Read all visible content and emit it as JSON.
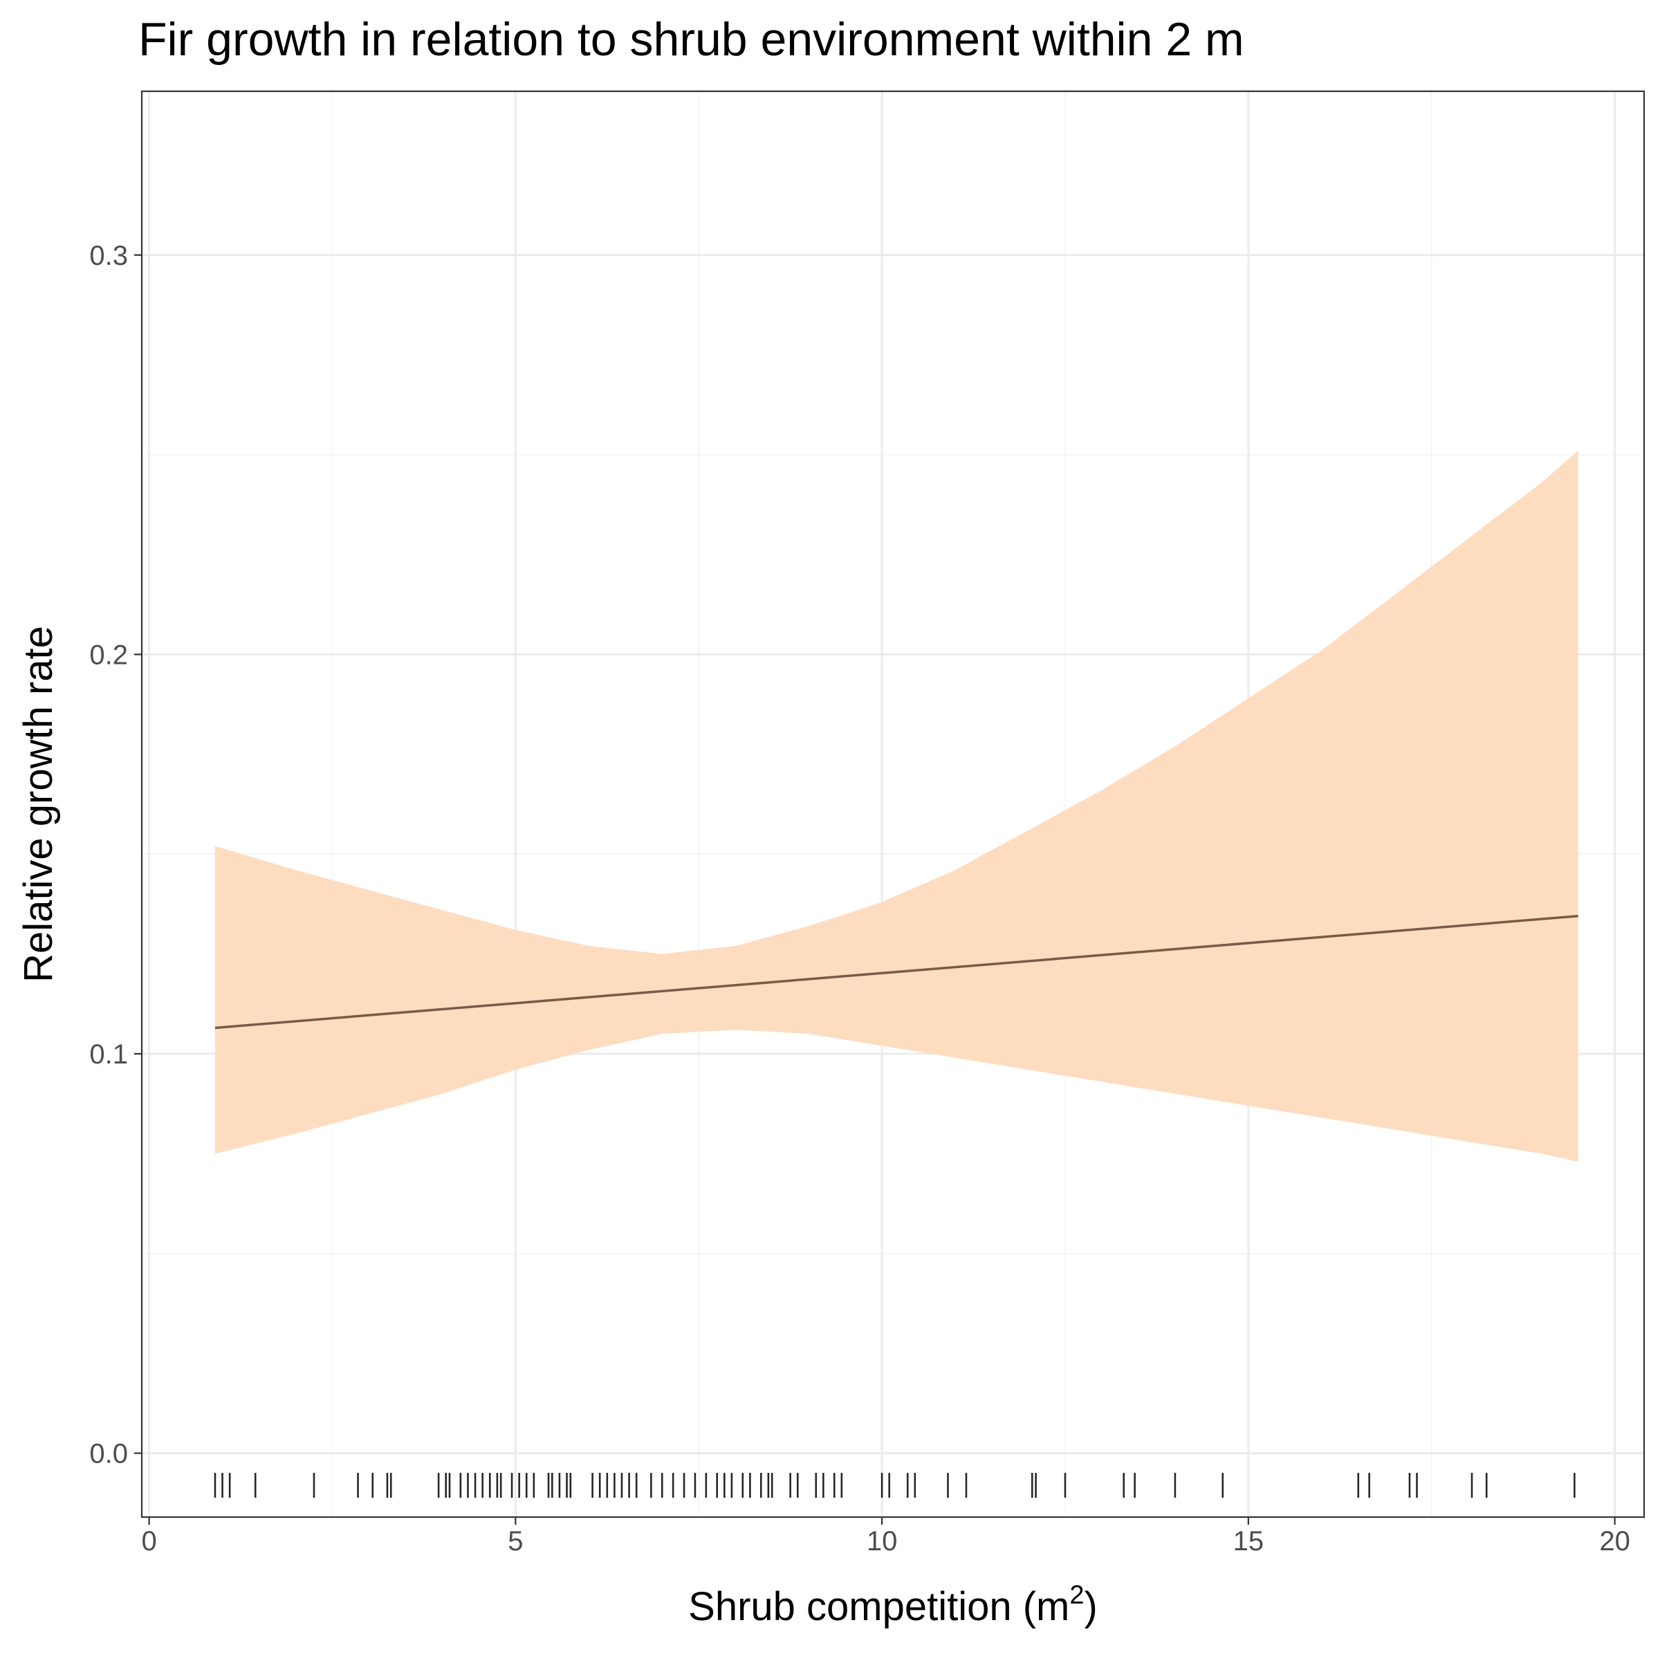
{
  "chart_data": {
    "type": "line",
    "title": "Fir growth in relation to shrub environment within 2 m",
    "xlabel": "Shrub competition (m",
    "xlabel_superscript": "2",
    "xlabel_suffix": ")",
    "ylabel": "Relative growth rate",
    "xlim": [
      -0.1,
      20.4
    ],
    "ylim": [
      -0.016,
      0.341
    ],
    "x_ticks": [
      0,
      5,
      10,
      15,
      20
    ],
    "x_tick_labels": [
      "0",
      "5",
      "10",
      "15",
      "20"
    ],
    "y_ticks": [
      0.0,
      0.1,
      0.2,
      0.3
    ],
    "y_tick_labels": [
      "0.0",
      "0.1",
      "0.2",
      "0.3"
    ],
    "grid": true,
    "theme": "bw",
    "series": [
      {
        "fit_x": [
          0.9,
          19.5
        ],
        "fit_y": [
          0.1065,
          0.1345
        ],
        "color": "#7B5A45",
        "ribbon_color": "#FDDCC0",
        "ribbon": [
          {
            "x": 0.9,
            "lower": 0.075,
            "upper": 0.152
          },
          {
            "x": 2.0,
            "lower": 0.08,
            "upper": 0.146
          },
          {
            "x": 3.0,
            "lower": 0.085,
            "upper": 0.141
          },
          {
            "x": 4.0,
            "lower": 0.09,
            "upper": 0.136
          },
          {
            "x": 5.0,
            "lower": 0.096,
            "upper": 0.131
          },
          {
            "x": 6.0,
            "lower": 0.101,
            "upper": 0.127
          },
          {
            "x": 7.0,
            "lower": 0.105,
            "upper": 0.125
          },
          {
            "x": 8.0,
            "lower": 0.106,
            "upper": 0.127
          },
          {
            "x": 9.0,
            "lower": 0.105,
            "upper": 0.132
          },
          {
            "x": 10.0,
            "lower": 0.102,
            "upper": 0.138
          },
          {
            "x": 11.0,
            "lower": 0.099,
            "upper": 0.146
          },
          {
            "x": 12.0,
            "lower": 0.096,
            "upper": 0.156
          },
          {
            "x": 13.0,
            "lower": 0.093,
            "upper": 0.166
          },
          {
            "x": 14.0,
            "lower": 0.09,
            "upper": 0.177
          },
          {
            "x": 15.0,
            "lower": 0.087,
            "upper": 0.189
          },
          {
            "x": 16.0,
            "lower": 0.084,
            "upper": 0.201
          },
          {
            "x": 17.0,
            "lower": 0.081,
            "upper": 0.215
          },
          {
            "x": 18.0,
            "lower": 0.078,
            "upper": 0.229
          },
          {
            "x": 19.0,
            "lower": 0.075,
            "upper": 0.243
          },
          {
            "x": 19.5,
            "lower": 0.073,
            "upper": 0.251
          }
        ]
      }
    ],
    "rug_x": [
      0.9,
      1.0,
      1.1,
      1.45,
      2.25,
      2.85,
      3.05,
      3.25,
      3.3,
      3.95,
      4.05,
      4.1,
      4.25,
      4.35,
      4.45,
      4.55,
      4.65,
      4.75,
      4.8,
      4.95,
      5.05,
      5.15,
      5.25,
      5.45,
      5.5,
      5.6,
      5.7,
      5.75,
      6.05,
      6.15,
      6.25,
      6.35,
      6.45,
      6.55,
      6.65,
      6.85,
      7.0,
      7.15,
      7.3,
      7.45,
      7.6,
      7.75,
      7.85,
      7.95,
      8.1,
      8.2,
      8.35,
      8.45,
      8.5,
      8.75,
      8.85,
      9.1,
      9.2,
      9.35,
      9.45,
      10.0,
      10.1,
      10.35,
      10.45,
      10.9,
      11.15,
      12.05,
      12.1,
      12.5,
      13.3,
      13.45,
      14.0,
      14.65,
      16.5,
      16.65,
      17.2,
      17.3,
      18.05,
      18.25,
      19.45
    ]
  }
}
